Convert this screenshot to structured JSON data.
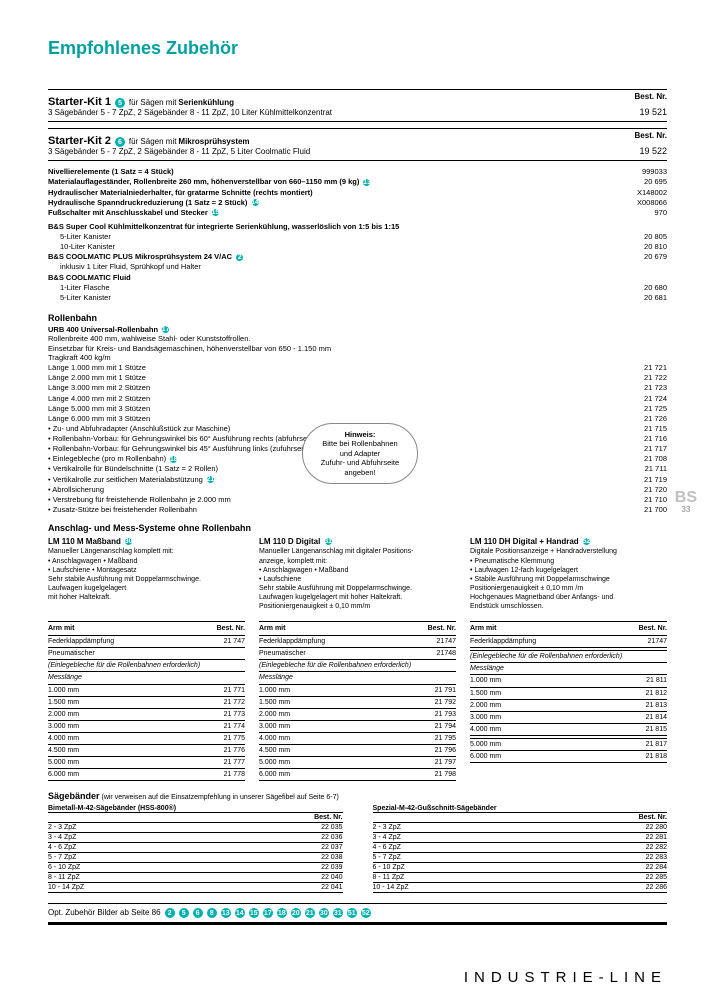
{
  "colors": {
    "accent": "#00a0a0",
    "badge": "#00b0b0",
    "text": "#000000",
    "bg": "#ffffff"
  },
  "page_title": "Empfohlenes Zubehör",
  "best_nr_label": "Best. Nr.",
  "starter_kit_1": {
    "title": "Starter-Kit 1",
    "badge": "5",
    "for": "für Sägen mit",
    "for_bold": "Serienkühlung",
    "desc": "3 Sägebänder 5 - 7 ZpZ, 2 Sägebänder 8 - 11 ZpZ, 10 Liter Kühlmittelkonzentrat",
    "num": "19 521"
  },
  "starter_kit_2": {
    "title": "Starter-Kit 2",
    "badge": "6",
    "for": "für Sägen mit",
    "for_bold": "Mikrosprühsystem",
    "desc": "3 Sägebänder 5 - 7 ZpZ, 2 Sägebänder 8 - 11 ZpZ, 5 Liter Coolmatic Fluid",
    "num": "19 522"
  },
  "list1": [
    {
      "l": "Nivellierelemente (1 Satz = 4 Stück)",
      "badge": "",
      "r": "999033"
    },
    {
      "l": "Materialauflageständer, Rollenbreite 260 mm, höhenverstellbar von 660–1150 mm (9 kg)",
      "badge": "13",
      "r": "20 695"
    },
    {
      "l": "Hydraulischer Materialniederhalter, für gratarme Schnitte (rechts montiert)",
      "badge": "",
      "r": "X148002"
    },
    {
      "l": "Hydraulische Spanndruckreduzierung (1 Satz = 2 Stück)",
      "badge": "14",
      "r": "X008066"
    },
    {
      "l": "Fußschalter mit Anschlusskabel und Stecker",
      "badge": "15",
      "r": "970"
    }
  ],
  "coolant_block": {
    "title": "B&S Super Cool Kühlmittelkonzentrat für integrierte Serienkühlung, wasserlöslich von 1:5 bis 1:15",
    "items": [
      {
        "l": "5-Liter Kanister",
        "r": "20 805"
      },
      {
        "l": "10-Liter Kanister",
        "r": "20 810"
      }
    ],
    "coolmatic_plus": {
      "l": "B&S COOLMATIC PLUS Mikrosprühsystem 24 V/AC",
      "badge": "2",
      "r": "20 679",
      "sub": "inklusiv 1 Liter Fluid, Sprühkopf und Halter"
    },
    "coolmatic_fluid_title": "B&S COOLMATIC Fluid",
    "fluid_items": [
      {
        "l": "1-Liter Flasche",
        "r": "20 680"
      },
      {
        "l": "5-Liter Kanister",
        "r": "20 681"
      }
    ]
  },
  "rollenbahn": {
    "title": "Rollenbahn",
    "ub_title": "URB 400 Universal-Rollenbahn",
    "ub_lines": [
      "Rollenbreite 400 mm, wahlweise Stahl- oder Kunststoffrollen.",
      "Einsetzbar für Kreis- und Bandsägemaschinen, höhenverstellbar von 650 - 1.150 mm",
      "Tragkraft 400 kg/m"
    ],
    "lengths": [
      {
        "l": "Länge 1.000 mm mit 1 Stütze",
        "r": "21 721"
      },
      {
        "l": "Länge 2.000 mm mit 1 Stütze",
        "r": "21 722"
      },
      {
        "l": "Länge 3.000 mm mit 2 Stützen",
        "r": "21 723"
      },
      {
        "l": "Länge 4.000 mm mit 2 Stützen",
        "r": "21 724"
      },
      {
        "l": "Länge 5.000 mm mit 3 Stützen",
        "r": "21 725"
      },
      {
        "l": "Länge 6.000 mm mit 3 Stützen",
        "r": "21 726"
      }
    ],
    "accessories": [
      {
        "l": "• Zu- und Abfuhradapter (Anschlußstück zur Maschine)",
        "r": "21 715"
      },
      {
        "l": "• Rollenbahn-Vorbau: für Gehrungswinkel bis 60° Ausführung rechts (abfuhrseitig) erforderlich",
        "r": "21 716"
      },
      {
        "l": "• Rollenbahn-Vorbau: für Gehrungswinkel bis 45° Ausführung links (zufuhrseitig) erforderlich",
        "r": "21 717"
      },
      {
        "l": "• Einlegebleche (pro m Rollenbahn)",
        "badge": "18",
        "r": "21 708"
      },
      {
        "l": "• Vertikalrolle für Bündelschnitte (1 Satz = 2 Rollen)",
        "r": "21 711"
      },
      {
        "l": "• Vertikalrolle zur seitlichen Materialabstützung",
        "badge": "21",
        "r": "21 719"
      },
      {
        "l": "• Abrollsicherung",
        "r": "21 720"
      },
      {
        "l": "• Verstrebung für freistehende Rollenbahn je 2.000 mm",
        "r": "21 710"
      },
      {
        "l": "• Zusatz-Stütze bei freistehender Rollenbahn",
        "r": "21 700"
      }
    ]
  },
  "hint": {
    "title": "Hinweis:",
    "line1": "Bitte bei Rollenbahnen",
    "line2": "und Adapter",
    "line3": "Zufuhr- und Abfuhrseite",
    "line4": "angeben!"
  },
  "mess_title": "Anschlag- und Mess-Systeme ohne Rollenbahn",
  "mess_cols": [
    {
      "title": "LM 110 M Maßband",
      "badge": "30",
      "lines": [
        "Manueller Längenanschlag komplett mit:",
        "• Anschlagwagen     • Maßband",
        "• Laufschiene            • Montagesatz",
        "Sehr stabile Ausführung mit Doppelarmschwinge.",
        "Laufwagen kugelgelagert",
        "mit hoher Haltekraft."
      ]
    },
    {
      "title": "LM 110 D Digital",
      "badge": "31",
      "lines": [
        "Manueller Längenanschlag mit digitaler Positions-",
        "anzeige, komplett mit:",
        "• Anschlagwagen     • Maßband",
        "• Laufschiene",
        "Sehr stabile Ausführung mit Doppelarmschwinge.",
        "Laufwagen kugelgelagert mit hoher Haltekraft.",
        "Positioniergenauigkeit ± 0,10 mm/m"
      ]
    },
    {
      "title": "LM 110 DH Digital + Handrad",
      "badge": "52",
      "lines": [
        "Digitale Positionsanzeige + Handradverstellung",
        "• Pneumatische Klemmung",
        "• Laufwagen 12-fach kugelgelagert",
        "• Stabile Ausführung mit Doppelarmschwinge",
        "Positioniergenauigkeit ± 0,10 mm /m",
        "Hochgenaues Magnetband über Anfangs- und",
        "Endstück umschlossen."
      ]
    }
  ],
  "meas_tables": [
    {
      "header_left": "Arm mit",
      "header_right": "Best. Nr.",
      "rows1": [
        {
          "l": "Federklappdämpfung",
          "r": "21 747"
        },
        {
          "l": "Pneumatischer",
          "r": ""
        }
      ],
      "einlege": "(Einlegebleche für die Rollenbahnen erforderlich)",
      "sub": "Messlänge",
      "rows2": [
        {
          "l": "1.000 mm",
          "r": "21 771"
        },
        {
          "l": "1.500 mm",
          "r": "21 772"
        },
        {
          "l": "2.000 mm",
          "r": "21 773"
        },
        {
          "l": "3.000 mm",
          "r": "21 774"
        },
        {
          "l": "4.000 mm",
          "r": "21 775"
        },
        {
          "l": "4.500 mm",
          "r": "21 776"
        },
        {
          "l": "5.000 mm",
          "r": "21 777"
        },
        {
          "l": "6.000 mm",
          "r": "21 778"
        }
      ]
    },
    {
      "header_left": "Arm mit",
      "header_right": "Best. Nr.",
      "rows1": [
        {
          "l": "Federklappdämpfung",
          "r": "21747"
        },
        {
          "l": "Pneumatischer",
          "r": "21748"
        }
      ],
      "einlege": "(Einlegebleche für die Rollenbahnen erforderlich)",
      "sub": "Messlänge",
      "rows2": [
        {
          "l": "1.000 mm",
          "r": "21 791"
        },
        {
          "l": "1.500 mm",
          "r": "21 792"
        },
        {
          "l": "2.000 mm",
          "r": "21 793"
        },
        {
          "l": "3.000 mm",
          "r": "21 794"
        },
        {
          "l": "4.000 mm",
          "r": "21 795"
        },
        {
          "l": "4.500 mm",
          "r": "21 796"
        },
        {
          "l": "5.000 mm",
          "r": "21 797"
        },
        {
          "l": "6.000 mm",
          "r": "21 798"
        }
      ]
    },
    {
      "header_left": "Arm mit",
      "header_right": "Best. Nr.",
      "rows1": [
        {
          "l": "Federklappdämpfung",
          "r": "21747"
        },
        {
          "l": "",
          "r": ""
        }
      ],
      "einlege": "(Einlegebleche für die Rollenbahnen erforderlich)",
      "sub": "Messlänge",
      "rows2": [
        {
          "l": "1.000 mm",
          "r": "21 811"
        },
        {
          "l": "1.500 mm",
          "r": "21 812"
        },
        {
          "l": "2.000 mm",
          "r": "21 813"
        },
        {
          "l": "3.000 mm",
          "r": "21 814"
        },
        {
          "l": "4.000 mm",
          "r": "21 815"
        },
        {
          "l": "",
          "r": ""
        },
        {
          "l": "5.000 mm",
          "r": "21 817"
        },
        {
          "l": "6.000 mm",
          "r": "21 818"
        }
      ]
    }
  ],
  "sagebander": {
    "title": "Sägebänder",
    "note": "(wir verweisen auf die Einsatzempfehlung in unserer Sägefibel auf Seite 6-7)",
    "left_title": "Bimetall-M-42-Sägebänder (HSS-800®)",
    "right_title": "Spezial-M-42-Gußschnitt-Sägebänder",
    "header": "Best. Nr.",
    "left_rows": [
      {
        "l": "2 - 3 ZpZ",
        "r": "22 035"
      },
      {
        "l": "3 - 4 ZpZ",
        "r": "22 036"
      },
      {
        "l": "4 - 6 ZpZ",
        "r": "22 037"
      },
      {
        "l": "5 - 7 ZpZ",
        "r": "22 038"
      },
      {
        "l": "6 - 10 ZpZ",
        "r": "22 039"
      },
      {
        "l": "8 - 11 ZpZ",
        "r": "22 040"
      },
      {
        "l": "10 - 14 ZpZ",
        "r": "22 041"
      }
    ],
    "right_rows": [
      {
        "l": "2 - 3 ZpZ",
        "r": "22 280"
      },
      {
        "l": "3 - 4 ZpZ",
        "r": "22 281"
      },
      {
        "l": "4 - 6 ZpZ",
        "r": "22 282"
      },
      {
        "l": "5 - 7 ZpZ",
        "r": "22 283"
      },
      {
        "l": "6 - 10 ZpZ",
        "r": "22 284"
      },
      {
        "l": "8 - 11 ZpZ",
        "r": "22 285"
      },
      {
        "l": "10 - 14 ZpZ",
        "r": "22 286"
      }
    ]
  },
  "opt_line": {
    "text": "Opt. Zubehör Bilder ab Seite 86",
    "badges": [
      "2",
      "5",
      "6",
      "8",
      "13",
      "14",
      "15",
      "17",
      "18",
      "20",
      "21",
      "30",
      "31",
      "51",
      "52"
    ]
  },
  "footer": "INDUSTRIE-LINE",
  "side": {
    "bs": "BS",
    "pg": "33"
  }
}
